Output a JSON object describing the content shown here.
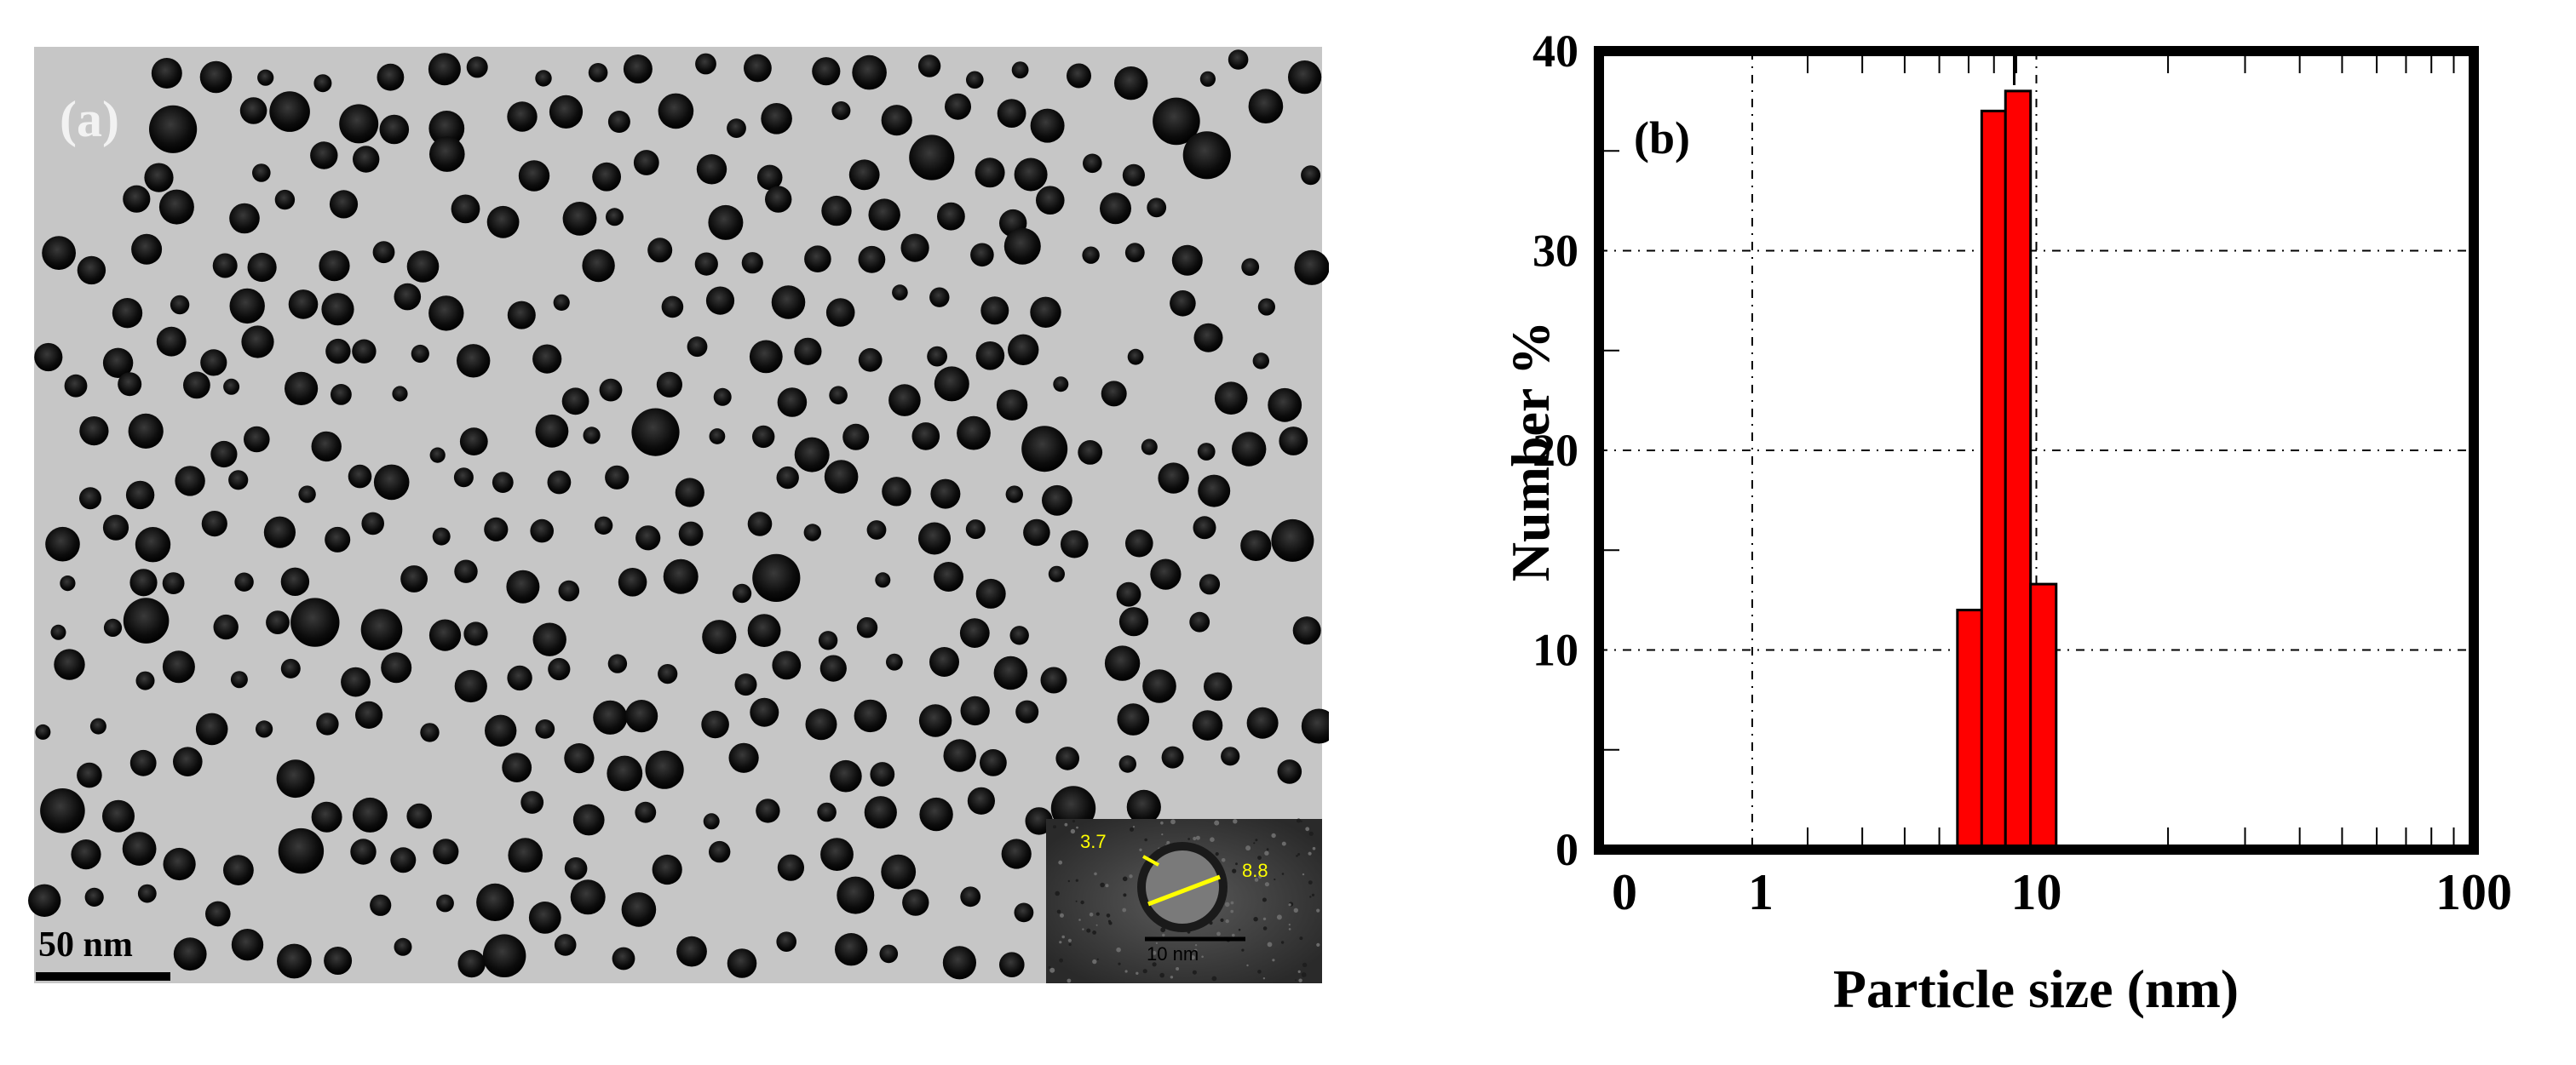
{
  "tem_panel": {
    "panel_label": "(a)",
    "scale_bar_label": "50 nm",
    "inset": {
      "measure_left": "3.7",
      "measure_right": "8.8",
      "scale_label": "10 nm"
    }
  },
  "chart_data": {
    "type": "bar",
    "panel_label": "(b)",
    "xlabel": "Particle size (nm)",
    "ylabel": "Number %",
    "xscale": "log",
    "xlim": [
      1,
      100
    ],
    "ylim": [
      0,
      40
    ],
    "x_tick_labels": [
      "0",
      "1",
      "10",
      "100"
    ],
    "y_tick_labels": [
      "0",
      "10",
      "20",
      "30",
      "40"
    ],
    "grid": true,
    "bars": [
      {
        "x_start": 6.6,
        "x_end": 7.5,
        "value": 12
      },
      {
        "x_start": 7.5,
        "x_end": 8.5,
        "value": 37
      },
      {
        "x_start": 8.5,
        "x_end": 9.7,
        "value": 38
      },
      {
        "x_start": 9.7,
        "x_end": 11.1,
        "value": 13.3
      }
    ],
    "bar_color": "#ff0000"
  }
}
